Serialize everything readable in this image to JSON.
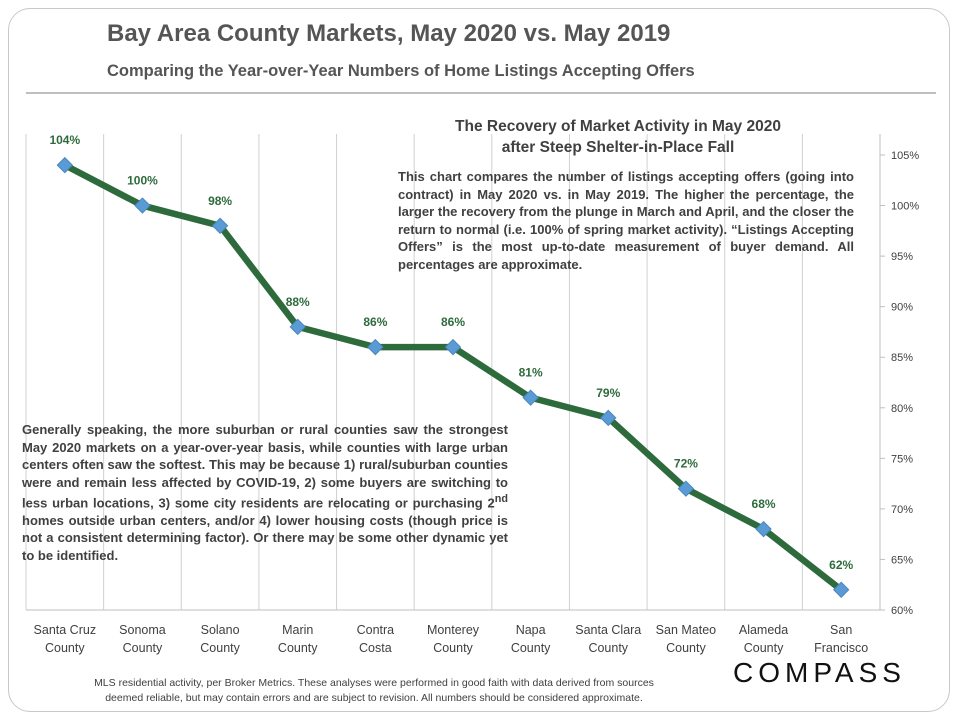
{
  "header": {
    "title": "Bay Area County Markets, May 2020 vs. May 2019",
    "subtitle": "Comparing the Year-over-Year Numbers of Home Listings Accepting Offers"
  },
  "notes": {
    "title_line1": "The Recovery of Market Activity in May 2020",
    "title_line2": "after Steep Shelter-in-Place Fall",
    "top_text": "This chart compares the number of listings accepting offers (going into contract) in May 2020 vs. in May 2019. The higher the percentage, the larger the recovery from the plunge in March and April, and the closer the return to normal (i.e. 100% of spring market activity).  “Listings Accepting Offers” is the most up-to-date measurement of buyer demand. All percentages are approximate.",
    "bottom_text_part1": "Generally speaking, the more suburban or rural counties saw the strongest May 2020 markets on a year-over-year basis, while counties with large urban centers often saw the softest. This may be because 1) rural/suburban counties were and remain less affected by COVID-19, 2) some buyers are switching to less urban locations, 3) some city residents are relocating or purchasing 2",
    "bottom_text_sup": "nd",
    "bottom_text_part2": " homes outside urban centers, and/or 4) lower housing costs (though price is not a consistent determining factor). Or there may be some other dynamic yet to be identified."
  },
  "footer": {
    "line1": "MLS residential activity, per Broker Metrics. These analyses were performed in good faith with data derived from sources",
    "line2": "deemed reliable, but may contain errors and are subject to revision.  All numbers should be considered approximate."
  },
  "logo": "COMPASS",
  "colors": {
    "line": "#2e6b3c",
    "marker": "#5b9bd5",
    "label": "#2e6b3c",
    "grid": "#d0d0d0",
    "axis_text": "#404040"
  },
  "chart_data": {
    "type": "line",
    "title": "The Recovery of Market Activity in May 2020 after Steep Shelter-in-Place Fall",
    "categories": [
      [
        "Santa Cruz",
        "County"
      ],
      [
        "Sonoma",
        "County"
      ],
      [
        "Solano",
        "County"
      ],
      [
        "Marin",
        "County"
      ],
      [
        "Contra",
        "Costa"
      ],
      [
        "Monterey",
        "County"
      ],
      [
        "Napa",
        "County"
      ],
      [
        "Santa Clara",
        "County"
      ],
      [
        "San Mateo",
        "County"
      ],
      [
        "Alameda",
        "County"
      ],
      [
        "San",
        "Francisco"
      ]
    ],
    "series": [
      {
        "name": "May 2020 vs. May 2019 listings accepting offers",
        "values": [
          104,
          100,
          98,
          88,
          86,
          86,
          81,
          79,
          72,
          68,
          62
        ]
      }
    ],
    "data_labels": [
      "104%",
      "100%",
      "98%",
      "88%",
      "86%",
      "86%",
      "81%",
      "79%",
      "72%",
      "68%",
      "62%"
    ],
    "ylim": [
      60,
      105
    ],
    "yticks": [
      60,
      65,
      70,
      75,
      80,
      85,
      90,
      95,
      100,
      105
    ],
    "ytick_labels": [
      "60%",
      "65%",
      "70%",
      "75%",
      "80%",
      "85%",
      "90%",
      "95%",
      "100%",
      "105%"
    ],
    "y_axis_side": "right",
    "grid": "vertical category separators"
  }
}
